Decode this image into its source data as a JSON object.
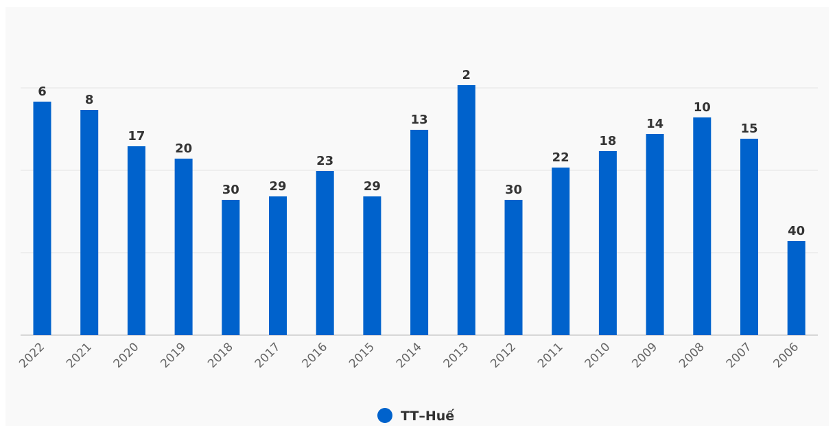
{
  "chart_data": {
    "type": "bar",
    "categories": [
      "2022",
      "2021",
      "2020",
      "2019",
      "2018",
      "2017",
      "2016",
      "2015",
      "2014",
      "2013",
      "2012",
      "2011",
      "2010",
      "2009",
      "2008",
      "2007",
      "2006"
    ],
    "series": [
      {
        "name": "TT–Huế",
        "values": [
          6,
          8,
          17,
          20,
          30,
          29,
          23,
          29,
          13,
          2,
          30,
          22,
          18,
          14,
          10,
          15,
          40
        ],
        "bar_heights_relative": [
          340,
          328,
          275,
          257,
          197,
          202,
          239,
          202,
          299,
          364,
          197,
          244,
          268,
          293,
          317,
          286,
          137
        ]
      }
    ],
    "data_labels": [
      "6",
      "8",
      "17",
      "20",
      "30",
      "29",
      "23",
      "29",
      "13",
      "2",
      "30",
      "22",
      "18",
      "14",
      "10",
      "15",
      "40"
    ],
    "title": "",
    "xlabel": "",
    "ylabel": "",
    "grid": true,
    "legend_position": "bottom-center",
    "colors": {
      "bar": "#0062cc",
      "grid": "#e3e3e3",
      "axis": "#cccccc",
      "plot_background": "#f9f9f9",
      "label_text": "#333333",
      "tick_text": "#666666"
    }
  }
}
